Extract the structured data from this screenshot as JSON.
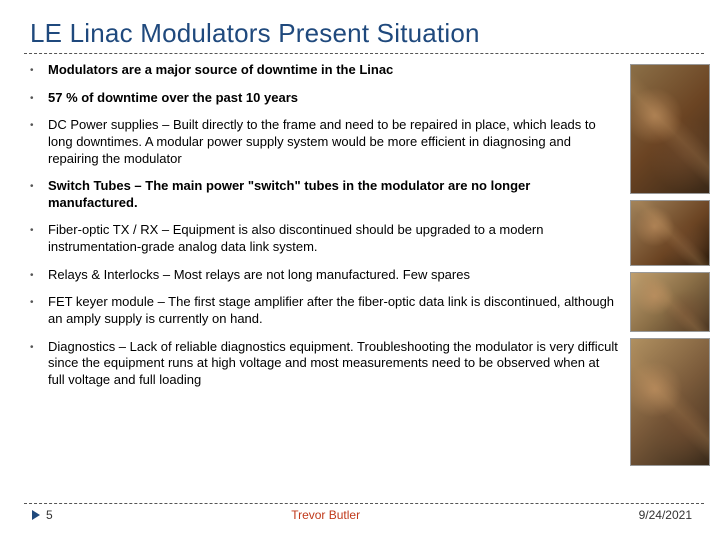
{
  "title": "LE Linac Modulators Present Situation",
  "bullets": [
    {
      "text": "Modulators are a major source of downtime in the Linac",
      "bold": true
    },
    {
      "text": "57 % of downtime over the past 10 years",
      "bold": true
    },
    {
      "text": "DC Power supplies – Built directly to the frame and need to be repaired in place, which leads to long downtimes.  A modular power supply system would be more efficient in diagnosing and repairing the modulator",
      "bold": false
    },
    {
      "text": "Switch Tubes – The main power \"switch\" tubes in the modulator are no longer manufactured.",
      "bold": true
    },
    {
      "text": "Fiber-optic TX / RX – Equipment is also discontinued should be upgraded to a modern instrumentation-grade analog data link system.",
      "bold": false
    },
    {
      "text": "Relays & Interlocks – Most relays are not long manufactured.  Few spares",
      "bold": false
    },
    {
      "text": "FET keyer module – The first stage amplifier after the fiber-optic data link is discontinued, although an amply supply is currently on hand.",
      "bold": false
    },
    {
      "text": "Diagnostics – Lack of reliable diagnostics equipment.  Troubleshooting the modulator is very difficult since the equipment runs at high voltage and most measurements need to be observed when at full voltage and full loading",
      "bold": false
    }
  ],
  "footer": {
    "page": "5",
    "author": "Trevor Butler",
    "date": "9/24/2021"
  },
  "colors": {
    "title": "#1f497d",
    "accent": "#c0391a",
    "text": "#000000"
  }
}
